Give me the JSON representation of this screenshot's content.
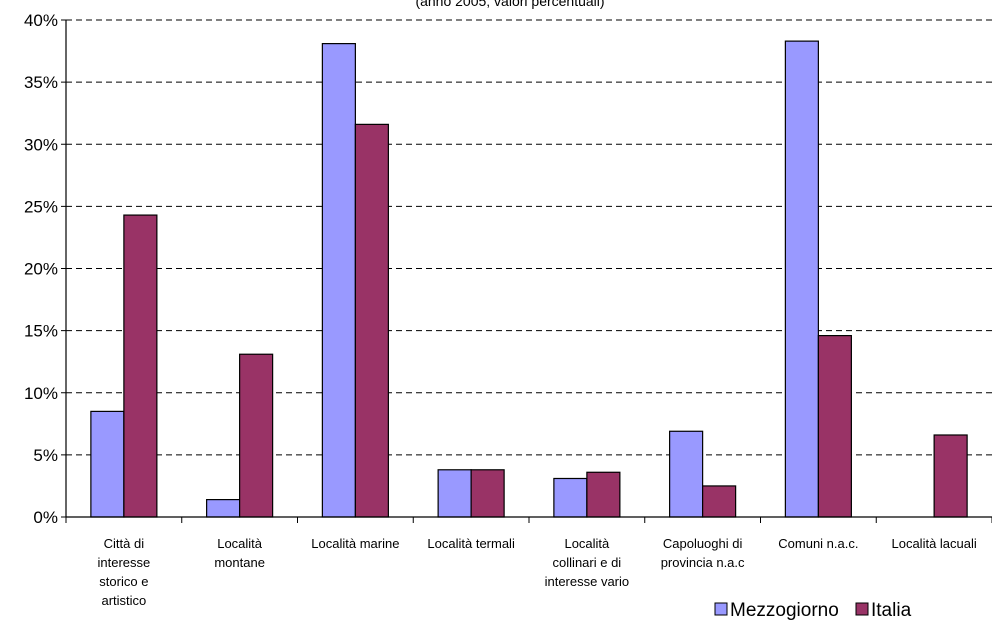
{
  "chart_data": {
    "type": "bar",
    "subtitle": "(anno 2005; valori percentuali)",
    "categories": [
      [
        "Città di",
        "interesse",
        "storico e",
        "artistico"
      ],
      [
        "Località",
        "montane"
      ],
      [
        "Località marine"
      ],
      [
        "Località termali"
      ],
      [
        "Località",
        "collinari e di",
        "interesse vario"
      ],
      [
        "Capoluoghi di",
        "provincia  n.a.c"
      ],
      [
        "Comuni  n.a.c."
      ],
      [
        "Località lacuali"
      ]
    ],
    "series": [
      {
        "name": "Mezzogiorno",
        "color": "#9999ff",
        "values": [
          8.5,
          1.4,
          38.1,
          3.8,
          3.1,
          6.9,
          38.3,
          0
        ]
      },
      {
        "name": "Italia",
        "color": "#993366",
        "values": [
          24.3,
          13.1,
          31.6,
          3.8,
          3.6,
          2.5,
          14.6,
          6.6
        ]
      }
    ],
    "yticks": [
      "0%",
      "5%",
      "10%",
      "15%",
      "20%",
      "25%",
      "30%",
      "35%",
      "40%"
    ],
    "ylim": [
      0,
      40
    ],
    "grid": true,
    "gridStyle": "dashed",
    "legend": "bottom-right"
  }
}
